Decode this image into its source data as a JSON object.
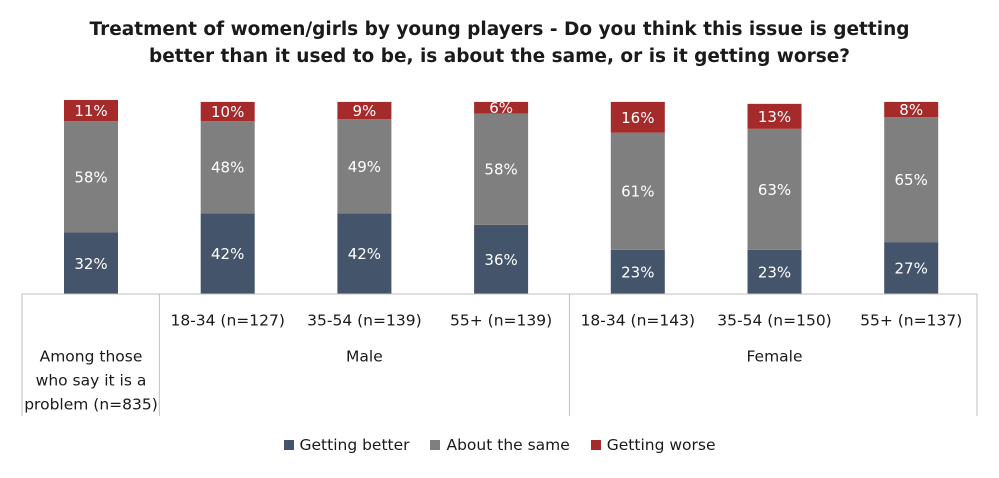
{
  "chart_data": {
    "type": "bar",
    "stacked": true,
    "title_lines": [
      "Treatment of women/girls by young players - Do you think this issue is getting",
      "better than it used to be, is about the same, or is it getting worse?"
    ],
    "categories": [
      "Among those who say it is a problem (n=835)",
      "18-34 (n=127)",
      "35-54 (n=139)",
      "55+ (n=139)",
      "18-34 (n=143)",
      "35-54 (n=150)",
      "55+ (n=137)"
    ],
    "category_label_lines": [
      [
        "Among those",
        "who say it is a",
        "problem (n=835)"
      ],
      [
        "18-34 (n=127)"
      ],
      [
        "35-54 (n=139)"
      ],
      [
        "55+ (n=139)"
      ],
      [
        "18-34 (n=143)"
      ],
      [
        "35-54 (n=150)"
      ],
      [
        "55+ (n=137)"
      ]
    ],
    "groups": [
      {
        "label": "Male",
        "categories": [
          1,
          2,
          3
        ]
      },
      {
        "label": "Female",
        "categories": [
          4,
          5,
          6
        ]
      }
    ],
    "series": [
      {
        "name": "Getting better",
        "color": "#44546a",
        "values": [
          32,
          42,
          42,
          36,
          23,
          23,
          27
        ]
      },
      {
        "name": "About the same",
        "color": "#7f7f7f",
        "values": [
          58,
          48,
          49,
          58,
          61,
          63,
          65
        ]
      },
      {
        "name": "Getting worse",
        "color": "#a52a2a",
        "values": [
          11,
          10,
          9,
          6,
          16,
          13,
          8
        ]
      }
    ],
    "value_suffix": "%",
    "ylim": [
      0,
      101
    ],
    "legend_position": "bottom",
    "grid": false
  }
}
